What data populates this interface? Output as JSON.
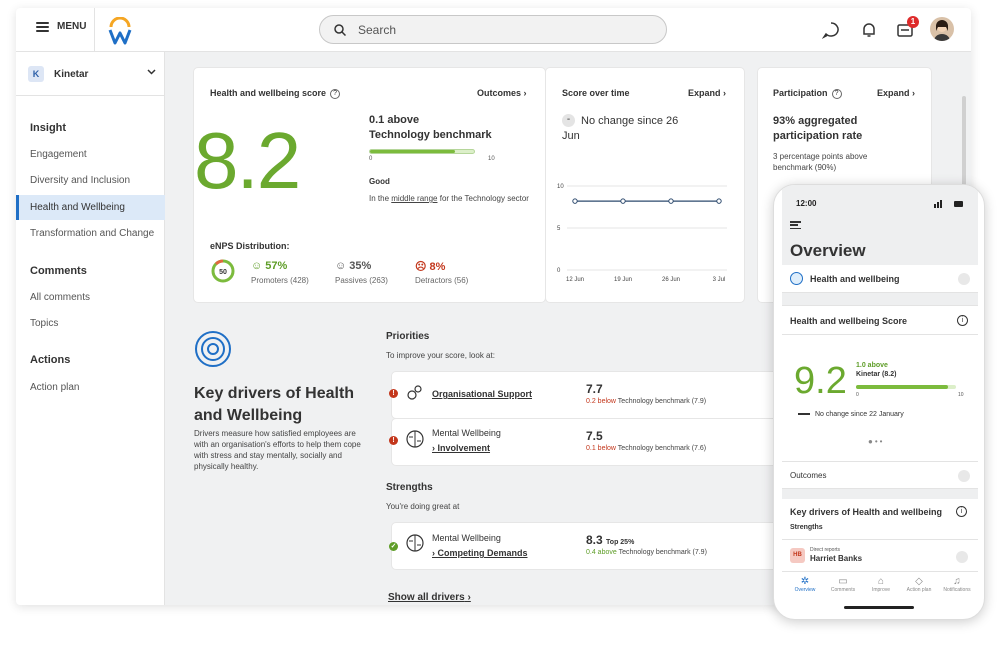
{
  "topbar": {
    "menu_label": "MENU",
    "search_placeholder": "Search",
    "notification_count": "1"
  },
  "sidebar": {
    "org_initial": "K",
    "org_name": "Kinetar",
    "sections": [
      {
        "title": "Insight",
        "items": [
          "Engagement",
          "Diversity and Inclusion",
          "Health and Wellbeing",
          "Transformation and Change"
        ]
      },
      {
        "title": "Comments",
        "items": [
          "All comments",
          "Topics"
        ]
      },
      {
        "title": "Actions",
        "items": [
          "Action plan"
        ]
      }
    ]
  },
  "score_card": {
    "title": "Health and wellbeing score",
    "link": "Outcomes",
    "score": "8.2",
    "score_value": 8.2,
    "benchmark_line1": "0.1 above",
    "benchmark_line2": "Technology benchmark",
    "bar_min": "0",
    "bar_max": "10",
    "rating": "Good",
    "rating_desc_pre": "In the",
    "rating_desc_link": "middle range",
    "rating_desc_post": "for the Technology sector",
    "enps_title": "eNPS Distribution:",
    "enps_value": "50",
    "promoters_pct": "57%",
    "promoters_label": "Promoters (428)",
    "passives_pct": "35%",
    "passives_label": "Passives (263)",
    "detractors_pct": "8%",
    "detractors_label": "Detractors (56)"
  },
  "time_card": {
    "title": "Score over time",
    "link": "Expand",
    "status": "No change since 26 Jun",
    "y_ticks": [
      "10",
      "5",
      "0"
    ],
    "x_ticks": [
      "12 Jun",
      "19 Jun",
      "26 Jun",
      "3 Jul"
    ]
  },
  "chart_data": {
    "type": "line",
    "title": "Score over time",
    "x": [
      "12 Jun",
      "19 Jun",
      "26 Jun",
      "3 Jul"
    ],
    "series": [
      {
        "values": [
          8.2,
          8.2,
          8.2,
          8.2
        ]
      }
    ],
    "ylim": [
      0,
      10
    ]
  },
  "participation_card": {
    "title": "Participation",
    "link": "Expand",
    "headline": "93% aggregated participation rate",
    "sub": "3 percentage points above benchmark (90%)"
  },
  "drivers": {
    "title": "Key drivers of Health and Wellbeing",
    "desc": "Drivers measure how satisfied employees are with an organisation's efforts to help them cope with stress and stay mentally, socially and physically healthy.",
    "priorities_title": "Priorities",
    "priorities_sub": "To improve your score, look at:",
    "priorities": [
      {
        "category": "",
        "name": "Organisational Support",
        "score": "7.7",
        "delta": "0.2 below",
        "bench": "Technology benchmark (7.9)"
      },
      {
        "category": "Mental Wellbeing",
        "name": "› Involvement",
        "score": "7.5",
        "delta": "0.1 below",
        "bench": "Technology benchmark (7.6)"
      }
    ],
    "strengths_title": "Strengths",
    "strengths_sub": "You're doing great at",
    "strengths": [
      {
        "category": "Mental Wellbeing",
        "name": "› Competing Demands",
        "score": "8.3",
        "top": "Top 25%",
        "delta": "0.4 above",
        "bench": "Technology benchmark (7.9)"
      }
    ],
    "show_all": "Show all drivers"
  },
  "phone": {
    "time": "12:00",
    "title": "Overview",
    "section": "Health and wellbeing",
    "score_title": "Health and wellbeing Score",
    "score": "9.2",
    "bench1": "1.0 above",
    "bench2": "Kinetar (8.2)",
    "bar_min": "0",
    "bar_max": "10",
    "no_change": "No change since 22 January",
    "outcomes": "Outcomes",
    "kd_title": "Key drivers of Health and wellbeing",
    "strengths": "Strengths",
    "person_initials": "HB",
    "person_role": "Direct reports",
    "person_name": "Harriet Banks",
    "nav": [
      "Overview",
      "Comments",
      "Improve",
      "Action plan",
      "Notifications"
    ]
  },
  "colors": {
    "accent": "#1f6fc6",
    "score_green": "#6ba92f",
    "negative": "#c3371c",
    "positive": "#5e9d27"
  }
}
